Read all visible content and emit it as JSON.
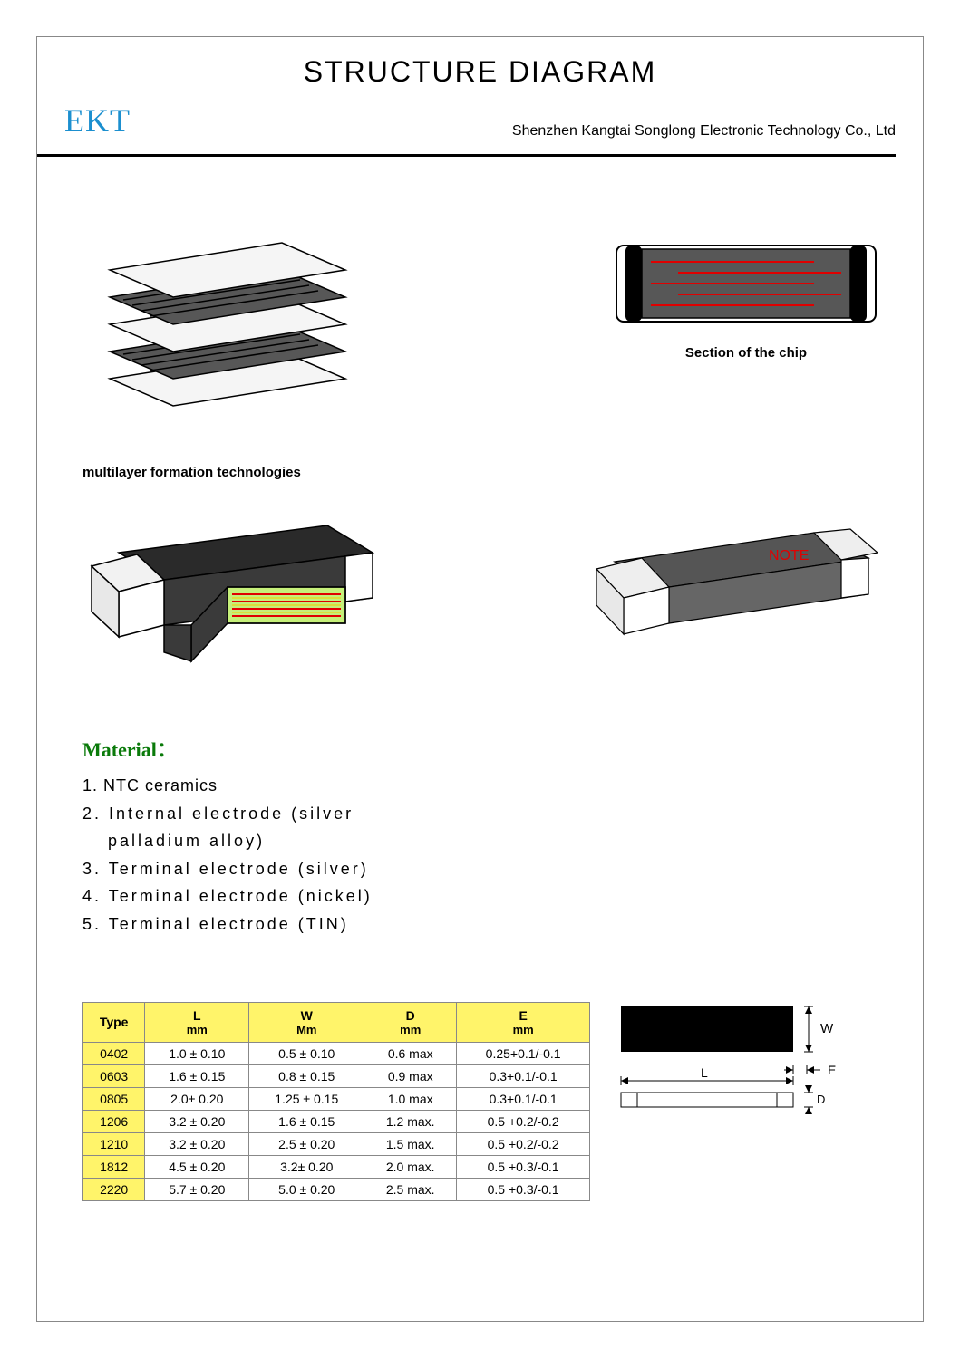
{
  "header": {
    "title": "STRUCTURE  DIAGRAM",
    "logo": "EKT",
    "company": "Shenzhen Kangtai Songlong Electronic Technology Co., Ltd"
  },
  "figures": {
    "multilayer_caption": "multilayer formation technologies",
    "section_caption": "Section of the chip",
    "note_label": "NOTE"
  },
  "material": {
    "heading": "Material：",
    "items": [
      "1.  NTC ceramics",
      "2.  Internal electrode (silver",
      "palladium alloy)",
      "3. Terminal electrode (silver)",
      "4. Terminal electrode (nickel)",
      "5. Terminal electrode (TIN)"
    ]
  },
  "table": {
    "columns": [
      {
        "label": "Type",
        "sub": ""
      },
      {
        "label": "L",
        "sub": "mm"
      },
      {
        "label": "W",
        "sub": "Mm"
      },
      {
        "label": "D",
        "sub": "mm"
      },
      {
        "label": "E",
        "sub": "mm"
      }
    ],
    "rows": [
      [
        "0402",
        "1.0 ± 0.10",
        "0.5 ± 0.10",
        "0.6 max",
        "0.25+0.1/-0.1"
      ],
      [
        "0603",
        "1.6 ± 0.15",
        "0.8 ± 0.15",
        "0.9 max",
        "0.3+0.1/-0.1"
      ],
      [
        "0805",
        "2.0± 0.20",
        "1.25 ± 0.15",
        "1.0 max",
        "0.3+0.1/-0.1"
      ],
      [
        "1206",
        "3.2 ± 0.20",
        "1.6 ± 0.15",
        "1.2 max.",
        "0.5 +0.2/-0.2"
      ],
      [
        "1210",
        "3.2 ± 0.20",
        "2.5 ± 0.20",
        "1.5 max.",
        "0.5 +0.2/-0.2"
      ],
      [
        "1812",
        "4.5 ± 0.20",
        "3.2± 0.20",
        "2.0 max.",
        "0.5 +0.3/-0.1"
      ],
      [
        "2220",
        "5.7 ± 0.20",
        "5.0 ± 0.20",
        "2.5 max.",
        "0.5 +0.3/-0.1"
      ]
    ]
  },
  "dim_labels": {
    "L": "L",
    "W": "W",
    "E": "E",
    "D": "D"
  },
  "colors": {
    "logo": "#1b8fcf",
    "material_heading": "#0a7a0a",
    "table_header_bg": "#fff46a",
    "chip_body": "#575757",
    "chip_electrode_line": "#e00000",
    "chip_light": "#e8e8e8",
    "cutaway_green": "#c6f07a",
    "note_text": "#e00000"
  }
}
